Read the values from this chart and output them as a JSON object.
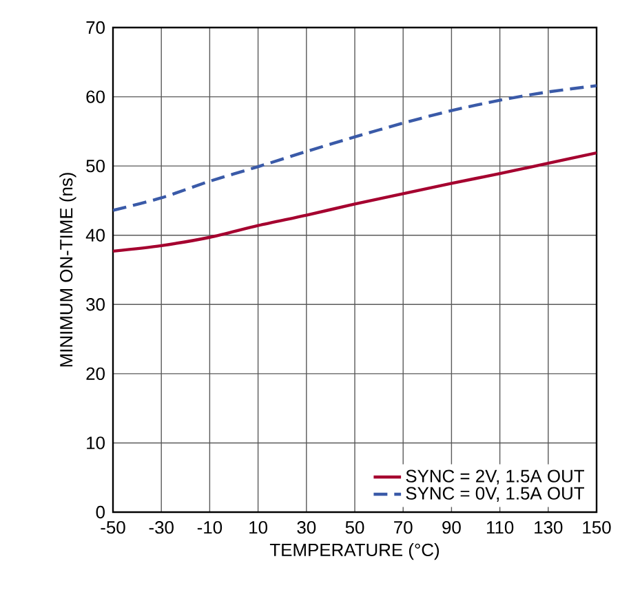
{
  "chart_data": {
    "type": "line",
    "xlabel": "TEMPERATURE (°C)",
    "ylabel": "MINIMUM ON-TIME (ns)",
    "x": [
      -50,
      -30,
      -10,
      10,
      30,
      50,
      70,
      90,
      110,
      130,
      150
    ],
    "series": [
      {
        "name": "SYNC = 2V, 1.5A OUT",
        "color": "#a5002f",
        "line_style": "solid",
        "values": [
          37.7,
          38.5,
          39.7,
          41.4,
          42.9,
          44.5,
          46.0,
          47.5,
          48.9,
          50.4,
          51.9
        ]
      },
      {
        "name": "SYNC = 0V, 1.5A OUT",
        "color": "#3a5aa8",
        "line_style": "dashed",
        "values": [
          43.6,
          45.4,
          47.8,
          49.9,
          52.1,
          54.2,
          56.2,
          58.0,
          59.5,
          60.7,
          61.6
        ]
      }
    ],
    "xlim": [
      -50,
      150
    ],
    "xticks": [
      -50,
      -30,
      -10,
      10,
      30,
      50,
      70,
      90,
      110,
      130,
      150
    ],
    "ylim": [
      0,
      70
    ],
    "yticks": [
      0,
      10,
      20,
      30,
      40,
      50,
      60,
      70
    ],
    "grid": true,
    "legend": "bottom right",
    "marker": "none"
  }
}
